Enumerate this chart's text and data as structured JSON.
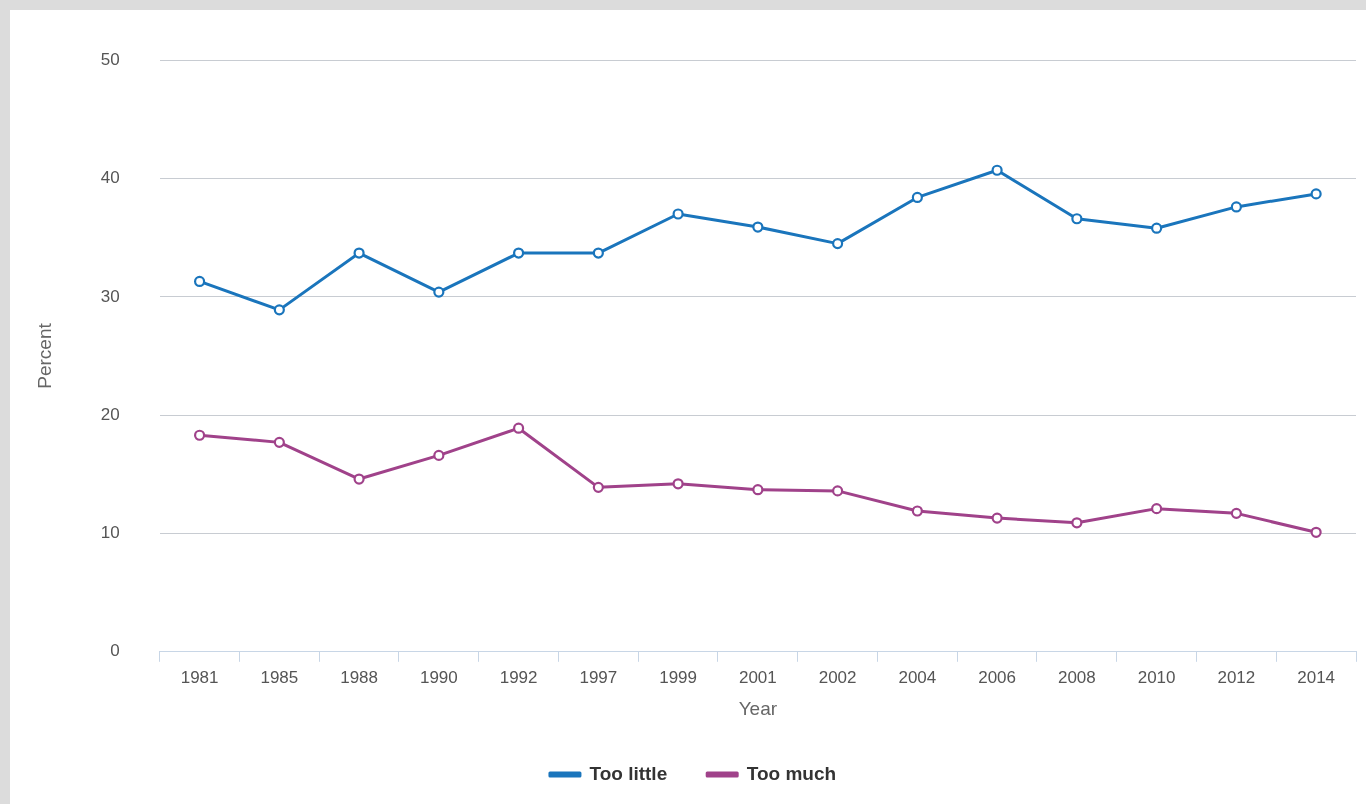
{
  "chart_data": {
    "type": "line",
    "xlabel": "Year",
    "ylabel": "Percent",
    "categories": [
      "1981",
      "1985",
      "1988",
      "1990",
      "1992",
      "1997",
      "1999",
      "2001",
      "2002",
      "2004",
      "2006",
      "2008",
      "2010",
      "2012",
      "2014"
    ],
    "series": [
      {
        "name": "Too little",
        "color": "#1a75bc",
        "values": [
          31.3,
          28.9,
          33.7,
          30.4,
          33.7,
          33.7,
          37.0,
          35.9,
          34.5,
          38.4,
          40.7,
          36.6,
          35.8,
          37.6,
          38.7
        ]
      },
      {
        "name": "Too much",
        "color": "#a0428a",
        "values": [
          18.3,
          17.7,
          14.6,
          16.6,
          18.9,
          13.9,
          14.2,
          13.7,
          13.6,
          11.9,
          11.3,
          10.9,
          12.1,
          11.7,
          10.1
        ]
      }
    ],
    "ylim": [
      0,
      50
    ],
    "yticks": [
      0,
      10,
      20,
      30,
      40,
      50
    ],
    "grid": "y",
    "legend": "bottom",
    "marker": "circle",
    "line_style": "solid"
  }
}
